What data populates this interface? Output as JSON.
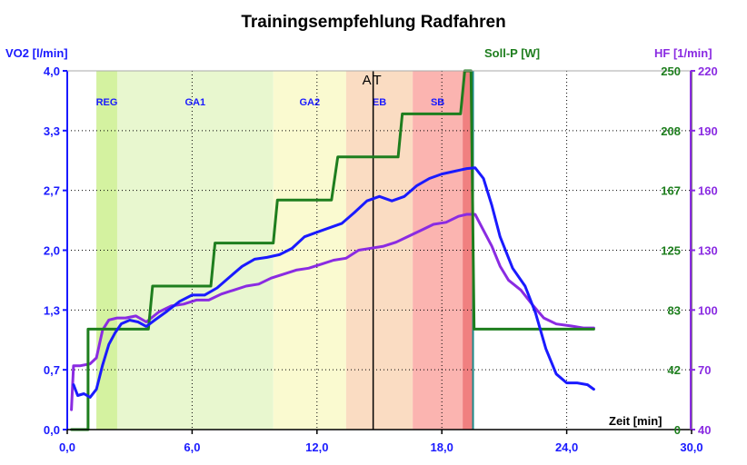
{
  "chart_data": {
    "type": "line",
    "title": "Trainingsempfehlung Radfahren",
    "xlabel": "Zeit [min]",
    "xlim": [
      0,
      30
    ],
    "x_ticks": [
      "0,0",
      "6,0",
      "12,0",
      "18,0",
      "24,0",
      "30,0"
    ],
    "grid": true,
    "axes": {
      "vo2": {
        "label": "VO2 [l/min]",
        "position": "left",
        "color": "#1a1aff",
        "range": [
          0,
          4
        ],
        "ticks": [
          "0,0",
          "0,7",
          "1,3",
          "2,0",
          "2,7",
          "3,3",
          "4,0"
        ]
      },
      "power": {
        "label": "Soll-P [W]",
        "position": "inner-right",
        "color": "#1e7e1e",
        "range": [
          0,
          250
        ],
        "ticks": [
          "0",
          "42",
          "83",
          "125",
          "167",
          "208",
          "250"
        ]
      },
      "hr": {
        "label": "HF [1/min]",
        "position": "right",
        "color": "#8a2be2",
        "range": [
          40,
          220
        ],
        "ticks": [
          "40",
          "70",
          "100",
          "130",
          "160",
          "190",
          "220"
        ]
      }
    },
    "zones": [
      {
        "name": "REG",
        "x0": 1.4,
        "x1": 2.4,
        "color": "#d4f2a0"
      },
      {
        "name": "GA1",
        "x0": 2.4,
        "x1": 9.9,
        "color": "#e8f7cf"
      },
      {
        "name": "GA2",
        "x0": 9.9,
        "x1": 13.4,
        "color": "#fafad0"
      },
      {
        "name": "EB",
        "x0": 13.4,
        "x1": 16.6,
        "color": "#fadcc2"
      },
      {
        "name": "SB",
        "x0": 16.6,
        "x1": 19.0,
        "color": "#fbb4b0"
      },
      {
        "name": "",
        "x0": 19.0,
        "x1": 19.5,
        "color": "#f08080"
      }
    ],
    "marker": {
      "label": "AT",
      "x": 14.7
    },
    "end_line_x": 19.5,
    "series": [
      {
        "name": "Soll-P [W]",
        "axis": "power",
        "color": "#1e7e1e",
        "step": true,
        "points": [
          [
            0.2,
            0
          ],
          [
            1.0,
            0
          ],
          [
            1.0,
            70
          ],
          [
            3.9,
            70
          ],
          [
            4.1,
            100
          ],
          [
            6.9,
            100
          ],
          [
            7.1,
            130
          ],
          [
            9.9,
            130
          ],
          [
            10.1,
            160
          ],
          [
            12.7,
            160
          ],
          [
            13.0,
            190
          ],
          [
            15.9,
            190
          ],
          [
            16.1,
            220
          ],
          [
            18.9,
            220
          ],
          [
            19.1,
            250
          ],
          [
            19.4,
            250
          ],
          [
            19.55,
            70
          ],
          [
            25.3,
            70
          ]
        ]
      },
      {
        "name": "VO2 [l/min]",
        "axis": "vo2",
        "color": "#1a1aff",
        "points": [
          [
            0.3,
            0.5
          ],
          [
            0.5,
            0.38
          ],
          [
            0.8,
            0.4
          ],
          [
            1.1,
            0.36
          ],
          [
            1.4,
            0.45
          ],
          [
            1.7,
            0.72
          ],
          [
            2.0,
            0.95
          ],
          [
            2.3,
            1.08
          ],
          [
            2.6,
            1.18
          ],
          [
            3.0,
            1.22
          ],
          [
            3.4,
            1.2
          ],
          [
            3.8,
            1.15
          ],
          [
            4.2,
            1.22
          ],
          [
            4.8,
            1.32
          ],
          [
            5.4,
            1.43
          ],
          [
            6.0,
            1.5
          ],
          [
            6.6,
            1.5
          ],
          [
            7.2,
            1.58
          ],
          [
            7.8,
            1.7
          ],
          [
            8.4,
            1.82
          ],
          [
            9.0,
            1.9
          ],
          [
            9.6,
            1.92
          ],
          [
            10.2,
            1.95
          ],
          [
            10.8,
            2.02
          ],
          [
            11.4,
            2.15
          ],
          [
            12.0,
            2.2
          ],
          [
            12.6,
            2.25
          ],
          [
            13.2,
            2.3
          ],
          [
            13.8,
            2.42
          ],
          [
            14.4,
            2.55
          ],
          [
            15.0,
            2.6
          ],
          [
            15.6,
            2.55
          ],
          [
            16.2,
            2.6
          ],
          [
            16.8,
            2.72
          ],
          [
            17.4,
            2.8
          ],
          [
            18.0,
            2.85
          ],
          [
            18.6,
            2.88
          ],
          [
            19.2,
            2.91
          ],
          [
            19.6,
            2.92
          ],
          [
            20.0,
            2.8
          ],
          [
            20.4,
            2.5
          ],
          [
            20.8,
            2.15
          ],
          [
            21.4,
            1.8
          ],
          [
            22.0,
            1.6
          ],
          [
            22.5,
            1.3
          ],
          [
            23.0,
            0.9
          ],
          [
            23.5,
            0.62
          ],
          [
            24.0,
            0.52
          ],
          [
            24.5,
            0.52
          ],
          [
            25.0,
            0.5
          ],
          [
            25.3,
            0.45
          ]
        ]
      },
      {
        "name": "HF [1/min]",
        "axis": "hr",
        "color": "#8a2be2",
        "points": [
          [
            0.2,
            50
          ],
          [
            0.3,
            72
          ],
          [
            0.6,
            72
          ],
          [
            1.1,
            73
          ],
          [
            1.4,
            76
          ],
          [
            1.7,
            90
          ],
          [
            2.0,
            95
          ],
          [
            2.4,
            96
          ],
          [
            2.8,
            96
          ],
          [
            3.3,
            97
          ],
          [
            3.8,
            94
          ],
          [
            4.4,
            99
          ],
          [
            5.0,
            102
          ],
          [
            5.6,
            103
          ],
          [
            6.2,
            105
          ],
          [
            6.8,
            105
          ],
          [
            7.4,
            108
          ],
          [
            8.0,
            110
          ],
          [
            8.6,
            112
          ],
          [
            9.2,
            113
          ],
          [
            9.8,
            116
          ],
          [
            10.4,
            118
          ],
          [
            11.0,
            120
          ],
          [
            11.6,
            121
          ],
          [
            12.2,
            123
          ],
          [
            12.8,
            125
          ],
          [
            13.4,
            126
          ],
          [
            14.0,
            130
          ],
          [
            14.6,
            131
          ],
          [
            15.2,
            132
          ],
          [
            15.8,
            134
          ],
          [
            16.4,
            137
          ],
          [
            17.0,
            140
          ],
          [
            17.6,
            143
          ],
          [
            18.2,
            144
          ],
          [
            18.8,
            147
          ],
          [
            19.2,
            148
          ],
          [
            19.6,
            148
          ],
          [
            20.0,
            140
          ],
          [
            20.4,
            132
          ],
          [
            20.8,
            122
          ],
          [
            21.2,
            115
          ],
          [
            21.8,
            110
          ],
          [
            22.4,
            102
          ],
          [
            22.9,
            96
          ],
          [
            23.5,
            93
          ],
          [
            24.2,
            92
          ],
          [
            24.8,
            91
          ],
          [
            25.3,
            91
          ]
        ]
      }
    ]
  }
}
